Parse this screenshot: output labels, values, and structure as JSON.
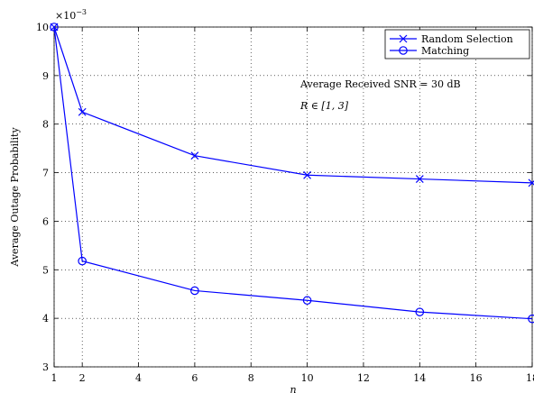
{
  "chart_data": {
    "type": "line",
    "title": "",
    "xlabel": "n",
    "ylabel": "Average Outage Probability",
    "y_exponent_label": "×10",
    "y_exponent_power": "−3",
    "xlim": [
      1,
      18
    ],
    "ylim": [
      3,
      10
    ],
    "xticks": [
      1,
      2,
      4,
      6,
      8,
      10,
      12,
      14,
      16,
      18
    ],
    "yticks": [
      3,
      4,
      5,
      6,
      7,
      8,
      9,
      10
    ],
    "grid": true,
    "legend_position": "top-right",
    "color": "#0000ff",
    "x": [
      1,
      2,
      6,
      10,
      14,
      18
    ],
    "series": [
      {
        "name": "Random Selection",
        "marker": "x",
        "values": [
          10.0,
          8.25,
          7.35,
          6.95,
          6.87,
          6.79
        ]
      },
      {
        "name": "Matching",
        "marker": "o",
        "values": [
          10.0,
          5.18,
          4.57,
          4.37,
          4.13,
          3.99
        ]
      }
    ],
    "annotations": [
      "Average Received SNR = 30 dB",
      "R ∈ [1, 3]"
    ]
  }
}
